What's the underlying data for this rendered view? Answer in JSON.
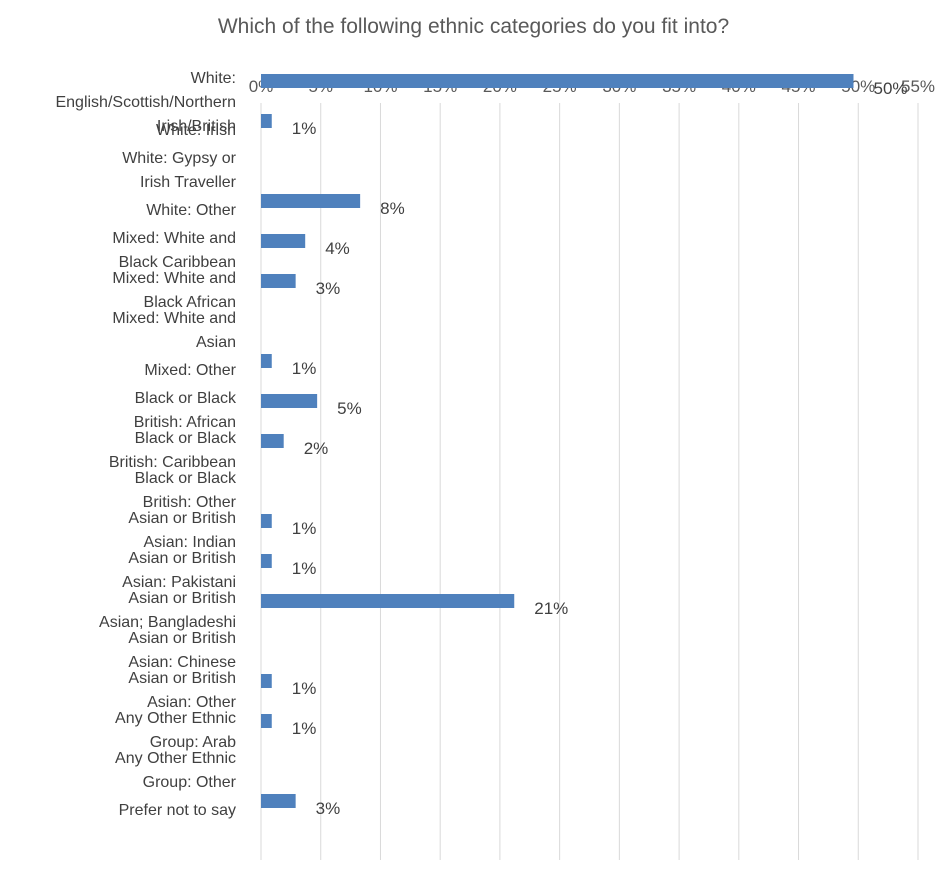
{
  "chart_data": {
    "type": "bar",
    "orientation": "horizontal",
    "title": "Which of the following ethnic categories do you fit into?",
    "xlim": [
      0,
      55
    ],
    "x_ticks": [
      0,
      5,
      10,
      15,
      20,
      25,
      30,
      35,
      40,
      45,
      50,
      55
    ],
    "tick_format": "percent",
    "grid": true,
    "bar_color": "#4f81bd",
    "categories": [
      "White: English/Scottish/Northern Irish/British",
      "White: Irish",
      "White: Gypsy or Irish Traveller",
      "White: Other",
      "Mixed: White and Black Caribbean",
      "Mixed: White and Black African",
      "Mixed: White and Asian",
      "Mixed: Other",
      "Black or Black British: African",
      "Black or Black British: Caribbean",
      "Black or Black British: Other",
      "Asian or British Asian: Indian",
      "Asian or British Asian: Pakistani",
      "Asian or British Asian; Bangladeshi",
      "Asian or British Asian: Chinese",
      "Asian or British Asian: Other",
      "Any Other Ethnic Group: Arab",
      "Any Other Ethnic Group: Other",
      "Prefer not to say"
    ],
    "category_label_lines": [
      [
        "White:",
        "English/Scottish/Northern",
        "Irish/British"
      ],
      [
        "White: Irish"
      ],
      [
        "White: Gypsy or",
        "Irish Traveller"
      ],
      [
        "White: Other"
      ],
      [
        "Mixed: White and",
        "Black Caribbean"
      ],
      [
        "Mixed: White and",
        "Black African"
      ],
      [
        "Mixed: White and",
        "Asian"
      ],
      [
        "Mixed: Other"
      ],
      [
        "Black or Black",
        "British: African"
      ],
      [
        "Black or Black",
        "British: Caribbean"
      ],
      [
        "Black or Black",
        "British: Other"
      ],
      [
        "Asian or British",
        "Asian: Indian"
      ],
      [
        "Asian or British",
        "Asian: Pakistani"
      ],
      [
        "Asian or British",
        "Asian; Bangladeshi"
      ],
      [
        "Asian or British",
        "Asian: Chinese"
      ],
      [
        "Asian or British",
        "Asian: Other"
      ],
      [
        "Any Other Ethnic",
        "Group: Arab"
      ],
      [
        "Any Other Ethnic",
        "Group: Other"
      ],
      [
        "Prefer not to say"
      ]
    ],
    "values": [
      49.6,
      0.9,
      0,
      8.3,
      3.7,
      2.9,
      0,
      0.9,
      4.7,
      1.9,
      0,
      0.9,
      0.9,
      21.2,
      0,
      0.9,
      0.9,
      0,
      2.9
    ],
    "data_labels": [
      "50%",
      "1%",
      null,
      "8%",
      "4%",
      "3%",
      null,
      "1%",
      "5%",
      "2%",
      null,
      "1%",
      "1%",
      "21%",
      null,
      "1%",
      "1%",
      null,
      "3%"
    ]
  }
}
